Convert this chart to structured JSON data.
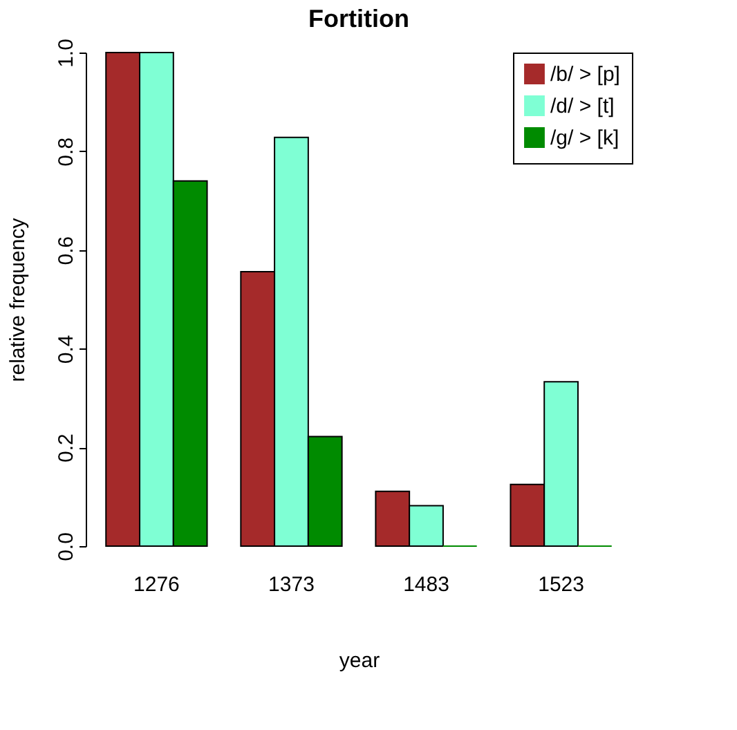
{
  "chart_data": {
    "type": "bar",
    "title": "Fortition",
    "xlabel": "year",
    "ylabel": "relative frequency",
    "categories": [
      "1276",
      "1373",
      "1483",
      "1523"
    ],
    "series": [
      {
        "name": "/b/ > [p]",
        "color": "#a52a2a",
        "values": [
          1.0,
          0.556,
          0.111,
          0.125
        ]
      },
      {
        "name": "/d/ > [t]",
        "color": "#7fffd4",
        "values": [
          1.0,
          0.828,
          0.082,
          0.333
        ]
      },
      {
        "name": "/g/ > [k]",
        "color": "#008b00",
        "values": [
          0.74,
          0.222,
          0.0,
          0.0
        ]
      }
    ],
    "ylim": [
      0,
      1.0
    ],
    "yticks": [
      {
        "value": 0,
        "label": "0.0"
      },
      {
        "value": 0.2,
        "label": "0.2"
      },
      {
        "value": 0.4,
        "label": "0.4"
      },
      {
        "value": 0.6,
        "label": "0.6"
      },
      {
        "value": 0.8,
        "label": "0.8"
      },
      {
        "value": 1.0,
        "label": "1.0"
      }
    ],
    "grid": false,
    "legend": "top right"
  }
}
